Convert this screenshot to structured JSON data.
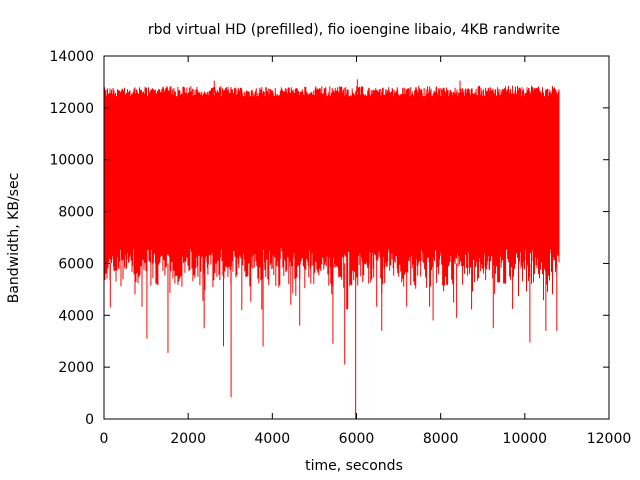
{
  "chart_data": {
    "type": "line",
    "title": "rbd virtual HD (prefilled), fio ioengine libaio, 4KB randwrite",
    "xlabel": "time, seconds",
    "ylabel": "Bandwidth, KB/sec",
    "xlim": [
      0,
      12000
    ],
    "ylim": [
      0,
      14000
    ],
    "x_ticks": [
      0,
      2000,
      4000,
      6000,
      8000,
      10000,
      12000
    ],
    "y_ticks": [
      0,
      2000,
      4000,
      6000,
      8000,
      10000,
      12000,
      14000
    ],
    "grid": false,
    "legend": "none",
    "series": [
      {
        "color": "#ff0000",
        "x_start": 0,
        "x_end": 10800,
        "band_upper_typical": 12600,
        "band_lower_typical": 6000,
        "peaks": [
          {
            "x": 2620,
            "y": 13050
          },
          {
            "x": 6020,
            "y": 13100
          },
          {
            "x": 8460,
            "y": 13050
          }
        ],
        "dips": [
          {
            "x": 150,
            "y": 4300
          },
          {
            "x": 1020,
            "y": 3100
          },
          {
            "x": 1520,
            "y": 2550
          },
          {
            "x": 2380,
            "y": 3500
          },
          {
            "x": 2840,
            "y": 2800
          },
          {
            "x": 3020,
            "y": 850
          },
          {
            "x": 3780,
            "y": 2800
          },
          {
            "x": 4650,
            "y": 3600
          },
          {
            "x": 5440,
            "y": 2900
          },
          {
            "x": 5720,
            "y": 2100
          },
          {
            "x": 5980,
            "y": 0
          },
          {
            "x": 6600,
            "y": 3400
          },
          {
            "x": 7820,
            "y": 3800
          },
          {
            "x": 8380,
            "y": 3900
          },
          {
            "x": 9250,
            "y": 3500
          },
          {
            "x": 10120,
            "y": 2950
          },
          {
            "x": 10500,
            "y": 3400
          },
          {
            "x": 10760,
            "y": 3400
          }
        ]
      }
    ]
  }
}
